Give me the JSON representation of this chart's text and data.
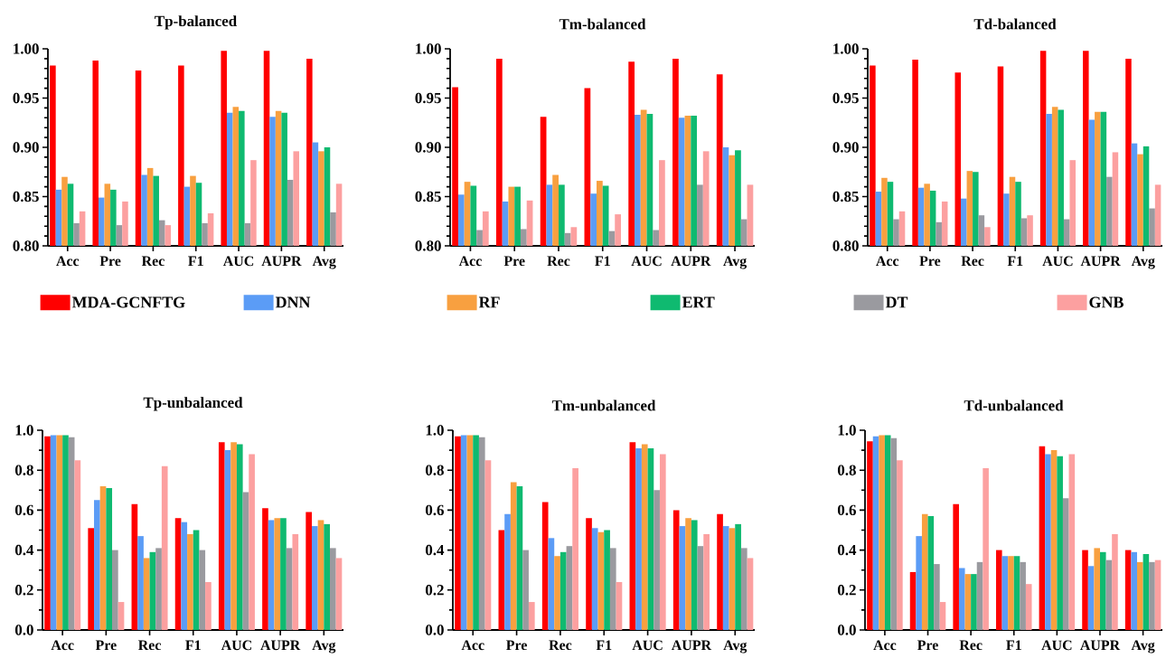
{
  "chart_data": [
    {
      "type": "bar",
      "title": "Tp-balanced",
      "categories": [
        "Acc",
        "Pre",
        "Rec",
        "F1",
        "AUC",
        "AUPR",
        "Avg"
      ],
      "ylim": [
        0.8,
        1.0
      ],
      "yticks": [
        {
          "value": 0.8,
          "label": "0.80"
        },
        {
          "value": 0.85,
          "label": "0.85"
        },
        {
          "value": 0.9,
          "label": "0.90"
        },
        {
          "value": 0.95,
          "label": "0.95"
        },
        {
          "value": 1.0,
          "label": "1.00"
        }
      ],
      "legend": "bottom",
      "series": [
        {
          "name": "MDA-GCNFTG",
          "color": "#ff0000",
          "values": [
            0.983,
            0.988,
            0.978,
            0.983,
            0.998,
            0.998,
            0.99
          ]
        },
        {
          "name": "DNN",
          "color": "#5b9cf6",
          "values": [
            0.857,
            0.849,
            0.872,
            0.86,
            0.935,
            0.931,
            0.905
          ]
        },
        {
          "name": "RF",
          "color": "#f8a040",
          "values": [
            0.87,
            0.863,
            0.879,
            0.871,
            0.941,
            0.937,
            0.896
          ]
        },
        {
          "name": "ERT",
          "color": "#0fba70",
          "values": [
            0.863,
            0.857,
            0.871,
            0.864,
            0.937,
            0.935,
            0.9
          ]
        },
        {
          "name": "DT",
          "color": "#9a9a9f",
          "values": [
            0.823,
            0.821,
            0.826,
            0.823,
            0.823,
            0.867,
            0.834
          ]
        },
        {
          "name": "GNB",
          "color": "#fca0a0",
          "values": [
            0.835,
            0.845,
            0.821,
            0.833,
            0.887,
            0.896,
            0.863
          ]
        }
      ]
    },
    {
      "type": "bar",
      "title": "Tm-balanced",
      "categories": [
        "Acc",
        "Pre",
        "Rec",
        "F1",
        "AUC",
        "AUPR",
        "Avg"
      ],
      "ylim": [
        0.8,
        1.0
      ],
      "yticks": [
        {
          "value": 0.8,
          "label": "0.80"
        },
        {
          "value": 0.85,
          "label": "0.85"
        },
        {
          "value": 0.9,
          "label": "0.90"
        },
        {
          "value": 0.95,
          "label": "0.95"
        },
        {
          "value": 1.0,
          "label": "1.00"
        }
      ],
      "series": [
        {
          "color": "#ff0000",
          "values": [
            0.961,
            0.99,
            0.931,
            0.96,
            0.987,
            0.99,
            0.974
          ]
        },
        {
          "color": "#5b9cf6",
          "values": [
            0.852,
            0.845,
            0.862,
            0.853,
            0.933,
            0.93,
            0.9
          ]
        },
        {
          "color": "#f8a040",
          "values": [
            0.865,
            0.86,
            0.872,
            0.866,
            0.938,
            0.932,
            0.892
          ]
        },
        {
          "color": "#0fba70",
          "values": [
            0.861,
            0.86,
            0.862,
            0.861,
            0.934,
            0.932,
            0.897
          ]
        },
        {
          "color": "#9a9a9f",
          "values": [
            0.816,
            0.817,
            0.813,
            0.815,
            0.816,
            0.862,
            0.827
          ]
        },
        {
          "color": "#fca0a0",
          "values": [
            0.835,
            0.846,
            0.819,
            0.832,
            0.887,
            0.896,
            0.862
          ]
        }
      ]
    },
    {
      "type": "bar",
      "title": "Td-balanced",
      "categories": [
        "Acc",
        "Pre",
        "Rec",
        "F1",
        "AUC",
        "AUPR",
        "Avg"
      ],
      "ylim": [
        0.8,
        1.0
      ],
      "yticks": [
        {
          "value": 0.8,
          "label": "0.80"
        },
        {
          "value": 0.85,
          "label": "0.85"
        },
        {
          "value": 0.9,
          "label": "0.90"
        },
        {
          "value": 0.95,
          "label": "0.95"
        },
        {
          "value": 1.0,
          "label": "1.00"
        }
      ],
      "series": [
        {
          "color": "#ff0000",
          "values": [
            0.983,
            0.989,
            0.976,
            0.982,
            0.998,
            0.998,
            0.99
          ]
        },
        {
          "color": "#5b9cf6",
          "values": [
            0.855,
            0.859,
            0.848,
            0.853,
            0.934,
            0.928,
            0.904
          ]
        },
        {
          "color": "#f8a040",
          "values": [
            0.869,
            0.863,
            0.876,
            0.87,
            0.941,
            0.936,
            0.893
          ]
        },
        {
          "color": "#0fba70",
          "values": [
            0.865,
            0.856,
            0.875,
            0.865,
            0.938,
            0.936,
            0.901
          ]
        },
        {
          "color": "#9a9a9f",
          "values": [
            0.827,
            0.824,
            0.831,
            0.828,
            0.827,
            0.87,
            0.838
          ]
        },
        {
          "color": "#fca0a0",
          "values": [
            0.835,
            0.845,
            0.819,
            0.831,
            0.887,
            0.895,
            0.862
          ]
        }
      ]
    },
    {
      "type": "bar",
      "title": "Tp-unbalanced",
      "categories": [
        "Acc",
        "Pre",
        "Rec",
        "F1",
        "AUC",
        "AUPR",
        "Avg"
      ],
      "ylim": [
        0.0,
        1.0
      ],
      "yticks": [
        {
          "value": 0.0,
          "label": "0.0"
        },
        {
          "value": 0.2,
          "label": "0.2"
        },
        {
          "value": 0.4,
          "label": "0.4"
        },
        {
          "value": 0.6,
          "label": "0.6"
        },
        {
          "value": 0.8,
          "label": "0.8"
        },
        {
          "value": 1.0,
          "label": "1.0"
        }
      ],
      "series": [
        {
          "color": "#ff0000",
          "values": [
            0.97,
            0.51,
            0.63,
            0.56,
            0.94,
            0.61,
            0.59
          ]
        },
        {
          "color": "#5b9cf6",
          "values": [
            0.975,
            0.65,
            0.47,
            0.54,
            0.9,
            0.55,
            0.52
          ]
        },
        {
          "color": "#f8a040",
          "values": [
            0.975,
            0.72,
            0.36,
            0.48,
            0.94,
            0.56,
            0.55
          ]
        },
        {
          "color": "#0fba70",
          "values": [
            0.975,
            0.71,
            0.39,
            0.5,
            0.93,
            0.56,
            0.53
          ]
        },
        {
          "color": "#9a9a9f",
          "values": [
            0.965,
            0.4,
            0.41,
            0.4,
            0.69,
            0.41,
            0.41
          ]
        },
        {
          "color": "#fca0a0",
          "values": [
            0.85,
            0.14,
            0.82,
            0.24,
            0.88,
            0.48,
            0.36
          ]
        }
      ]
    },
    {
      "type": "bar",
      "title": "Tm-unbalanced",
      "categories": [
        "Acc",
        "Pre",
        "Rec",
        "F1",
        "AUC",
        "AUPR",
        "Avg"
      ],
      "ylim": [
        0.0,
        1.0
      ],
      "yticks": [
        {
          "value": 0.0,
          "label": "0.0"
        },
        {
          "value": 0.2,
          "label": "0.2"
        },
        {
          "value": 0.4,
          "label": "0.4"
        },
        {
          "value": 0.6,
          "label": "0.6"
        },
        {
          "value": 0.8,
          "label": "0.8"
        },
        {
          "value": 1.0,
          "label": "1.0"
        }
      ],
      "series": [
        {
          "color": "#ff0000",
          "values": [
            0.97,
            0.5,
            0.64,
            0.56,
            0.94,
            0.6,
            0.58
          ]
        },
        {
          "color": "#5b9cf6",
          "values": [
            0.975,
            0.58,
            0.46,
            0.51,
            0.91,
            0.52,
            0.52
          ]
        },
        {
          "color": "#f8a040",
          "values": [
            0.975,
            0.74,
            0.37,
            0.49,
            0.93,
            0.56,
            0.51
          ]
        },
        {
          "color": "#0fba70",
          "values": [
            0.975,
            0.72,
            0.39,
            0.5,
            0.91,
            0.55,
            0.53
          ]
        },
        {
          "color": "#9a9a9f",
          "values": [
            0.965,
            0.4,
            0.42,
            0.41,
            0.7,
            0.42,
            0.41
          ]
        },
        {
          "color": "#fca0a0",
          "values": [
            0.85,
            0.14,
            0.81,
            0.24,
            0.88,
            0.48,
            0.36
          ]
        }
      ]
    },
    {
      "type": "bar",
      "title": "Td-unbalanced",
      "categories": [
        "Acc",
        "Pre",
        "Rec",
        "F1",
        "AUC",
        "AUPR",
        "Avg"
      ],
      "ylim": [
        0.0,
        1.0
      ],
      "yticks": [
        {
          "value": 0.0,
          "label": "0.0"
        },
        {
          "value": 0.2,
          "label": "0.2"
        },
        {
          "value": 0.4,
          "label": "0.4"
        },
        {
          "value": 0.6,
          "label": "0.6"
        },
        {
          "value": 0.8,
          "label": "0.8"
        },
        {
          "value": 1.0,
          "label": "1.0"
        }
      ],
      "series": [
        {
          "color": "#ff0000",
          "values": [
            0.945,
            0.29,
            0.63,
            0.4,
            0.92,
            0.4,
            0.4
          ]
        },
        {
          "color": "#5b9cf6",
          "values": [
            0.97,
            0.47,
            0.31,
            0.37,
            0.88,
            0.32,
            0.39
          ]
        },
        {
          "color": "#f8a040",
          "values": [
            0.975,
            0.58,
            0.28,
            0.37,
            0.9,
            0.41,
            0.34
          ]
        },
        {
          "color": "#0fba70",
          "values": [
            0.975,
            0.57,
            0.28,
            0.37,
            0.87,
            0.39,
            0.38
          ]
        },
        {
          "color": "#9a9a9f",
          "values": [
            0.96,
            0.33,
            0.34,
            0.34,
            0.66,
            0.35,
            0.34
          ]
        },
        {
          "color": "#fca0a0",
          "values": [
            0.85,
            0.14,
            0.81,
            0.23,
            0.88,
            0.48,
            0.35
          ]
        }
      ]
    }
  ]
}
